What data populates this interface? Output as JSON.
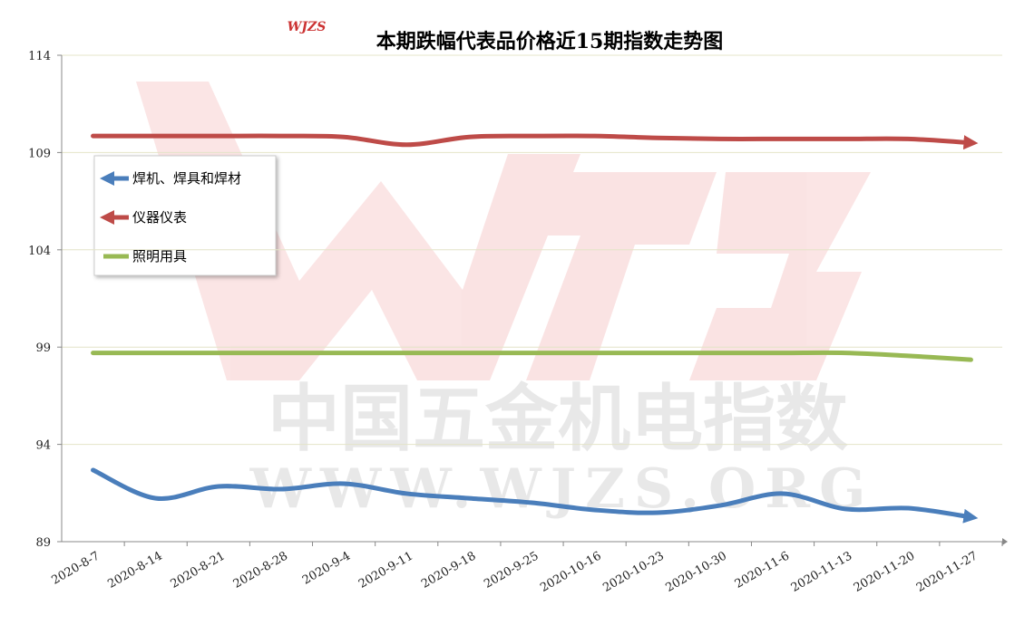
{
  "chart_data": {
    "type": "line",
    "title": "本期跌幅代表品价格近15期指数走势图",
    "logo": "WJZS",
    "watermark": [
      "中国五金机电指数",
      "WWW.WJZS.ORG"
    ],
    "categories": [
      "2020-8-7",
      "2020-8-14",
      "2020-8-21",
      "2020-8-28",
      "2020-9-4",
      "2020-9-11",
      "2020-9-18",
      "2020-9-25",
      "2020-10-16",
      "2020-10-23",
      "2020-10-30",
      "2020-11-6",
      "2020-11-13",
      "2020-11-20",
      "2020-11-27"
    ],
    "series": [
      {
        "name": "焊机、焊具和焊材",
        "color": "#4a7ebb",
        "values": [
          92.68,
          91.23,
          91.84,
          91.7,
          91.98,
          91.47,
          91.23,
          91.0,
          90.63,
          90.49,
          90.86,
          91.47,
          90.68,
          90.72,
          90.26
        ]
      },
      {
        "name": "仪器仪表",
        "color": "#be4b48",
        "values": [
          109.85,
          109.85,
          109.85,
          109.85,
          109.8,
          109.4,
          109.8,
          109.85,
          109.85,
          109.75,
          109.7,
          109.7,
          109.7,
          109.7,
          109.5
        ]
      },
      {
        "name": "照明用具",
        "color": "#98b954",
        "values": [
          98.7,
          98.7,
          98.7,
          98.7,
          98.7,
          98.7,
          98.7,
          98.7,
          98.7,
          98.7,
          98.7,
          98.7,
          98.7,
          98.55,
          98.35
        ]
      }
    ],
    "ylim": [
      89,
      114
    ],
    "yticks": [
      89,
      94,
      99,
      104,
      109,
      114
    ],
    "grid": true
  }
}
